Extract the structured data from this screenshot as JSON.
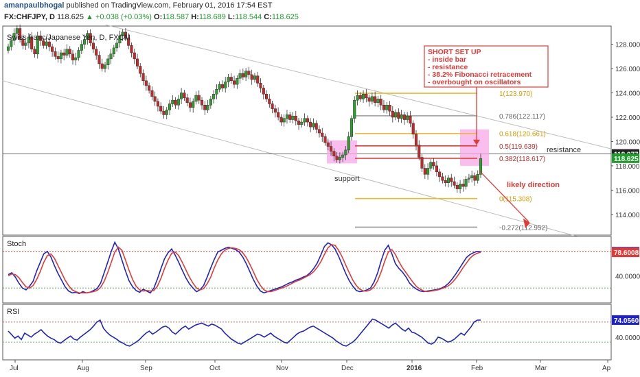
{
  "header": {
    "author": "amanpaulbhogal",
    "published_text": "published on TradingView.com, February 01, 2016 17:54 EST",
    "symbol_line": "FX:CHFJPY, D",
    "last_price": "118.625",
    "change": "+0.038 (+0.03%)",
    "ohlc": {
      "o_label": "O:",
      "o": "118.587",
      "h_label": "H:",
      "h": "118.689",
      "l_label": "L:",
      "l": "118.544",
      "c_label": "C:",
      "c": "118.625"
    }
  },
  "chart_data": [
    {
      "type": "candlestick",
      "title": "Swiss franc/Japanese Yen, D, FXCM",
      "ylim": [
        112.3,
        129.5
      ],
      "y_ticks": [
        114,
        116,
        118,
        120,
        122,
        124,
        126,
        128
      ],
      "x_ticks": [
        "Jul",
        "Aug",
        "Sep",
        "Oct",
        "Nov",
        "Dec",
        "2016",
        "Feb",
        "Mar",
        "Ap"
      ],
      "price_badges": [
        {
          "value": "118.977",
          "color": "#222222",
          "text_color": "#ffffff"
        },
        {
          "value": "118.625",
          "color": "#1f9d2c",
          "text_color": "#ffffff"
        }
      ],
      "closes": [
        127.8,
        128.3,
        128.9,
        129.3,
        128.4,
        127.9,
        128.1,
        128.6,
        127.6,
        127.2,
        128.7,
        128.3,
        127.9,
        128.2,
        127.8,
        127.4,
        127.0,
        126.8,
        127.3,
        127.1,
        127.6,
        127.2,
        126.7,
        126.9,
        127.5,
        128.0,
        128.4,
        128.9,
        128.1,
        127.6,
        127.1,
        126.4,
        126.0,
        126.3,
        126.8,
        127.2,
        127.7,
        128.1,
        128.7,
        129.0,
        128.5,
        127.9,
        127.3,
        126.8,
        126.2,
        125.6,
        125.0,
        124.6,
        124.2,
        123.7,
        123.3,
        122.9,
        122.5,
        122.2,
        122.6,
        123.1,
        123.4,
        123.0,
        123.5,
        124.0,
        123.6,
        123.2,
        122.8,
        123.3,
        123.8,
        123.4,
        123.0,
        122.6,
        123.0,
        123.5,
        123.9,
        124.3,
        124.7,
        124.4,
        124.9,
        125.3,
        125.0,
        124.7,
        125.2,
        125.6,
        125.3,
        125.8,
        125.5,
        125.1,
        125.4,
        124.8,
        124.4,
        123.9,
        123.5,
        123.1,
        122.7,
        122.4,
        122.0,
        121.6,
        121.9,
        122.2,
        121.8,
        122.1,
        121.7,
        121.4,
        121.6,
        121.9,
        121.6,
        121.2,
        121.5,
        121.0,
        120.7,
        120.4,
        119.9,
        119.6,
        119.2,
        118.8,
        118.5,
        118.7,
        118.9,
        119.3,
        120.4,
        121.9,
        123.4,
        123.8,
        123.5,
        123.9,
        123.6,
        123.3,
        123.7,
        123.2,
        123.5,
        123.0,
        122.6,
        123.0,
        122.5,
        122.0,
        122.4,
        121.9,
        122.2,
        121.8,
        122.1,
        121.5,
        120.6,
        119.7,
        118.7,
        117.8,
        117.3,
        117.8,
        118.3,
        118.0,
        117.5,
        117.1,
        116.8,
        116.6,
        117.0,
        116.7,
        116.4,
        116.1,
        116.5,
        116.3,
        116.9,
        117.0,
        117.2,
        116.8,
        117.3,
        118.6
      ],
      "fibonacci": [
        {
          "label": "1(123.970)",
          "value": 123.97,
          "color": "#f5b72a"
        },
        {
          "label": "0.786(122.117)",
          "value": 122.117,
          "color": "#9e9e9e"
        },
        {
          "label": "0.618(120.661)",
          "value": 120.661,
          "color": "#f5b72a"
        },
        {
          "label": "0.5(119.639)",
          "value": 119.639,
          "color": "#e53935"
        },
        {
          "label": "0.382(118.617)",
          "value": 118.617,
          "color": "#e53935"
        },
        {
          "label": "0(115.308)",
          "value": 115.308,
          "color": "#f5b72a"
        },
        {
          "label": "-0.272(112.952)",
          "value": 112.952,
          "color": "#9e9e9e"
        }
      ],
      "annotations": {
        "setup_box": [
          "SHORT SET UP",
          "- inside bar",
          "- resistance",
          "- 38.2% Fibonacci retracement",
          "- overbought on oscillators"
        ],
        "support": "support",
        "resistance": "resistance",
        "likely_direction": "likely direction"
      }
    },
    {
      "type": "line",
      "title": "Stoch",
      "ylim": [
        0,
        100
      ],
      "y_ticks": [
        40
      ],
      "levels": [
        80,
        20
      ],
      "badges": [
        {
          "value": "79.5316",
          "color": "#1e22c9"
        },
        {
          "value": "78.6008",
          "color": "#e53935"
        }
      ],
      "series": [
        {
          "name": "%K",
          "color": "#1e22c9",
          "values": [
            42,
            45,
            38,
            28,
            20,
            17,
            23,
            31,
            48,
            62,
            76,
            80,
            71,
            57,
            44,
            33,
            22,
            15,
            12,
            13,
            11,
            14,
            12,
            13,
            16,
            19,
            28,
            45,
            62,
            80,
            95,
            84,
            66,
            48,
            32,
            22,
            16,
            13,
            18,
            15,
            12,
            20,
            35,
            52,
            68,
            78,
            84,
            74,
            62,
            49,
            37,
            27,
            20,
            14,
            17,
            24,
            38,
            53,
            67,
            79,
            82,
            85,
            87,
            85,
            83,
            79,
            71,
            60,
            47,
            34,
            23,
            15,
            12,
            14,
            16,
            18,
            20,
            22,
            25,
            28,
            30,
            33,
            35,
            38,
            40,
            45,
            52,
            61,
            74,
            88,
            94,
            91,
            84,
            72,
            58,
            44,
            32,
            23,
            16,
            14,
            15,
            17,
            20,
            30,
            45,
            65,
            82,
            90,
            76,
            60,
            52,
            46,
            38,
            28,
            22,
            18,
            15,
            14,
            15,
            16,
            17,
            18,
            20,
            23,
            28,
            35,
            43,
            52,
            61,
            70,
            75,
            78,
            80,
            79.53
          ]
        },
        {
          "name": "%D",
          "color": "#e53935",
          "values": [
            40,
            43,
            42,
            37,
            29,
            22,
            20,
            24,
            34,
            47,
            62,
            73,
            76,
            69,
            57,
            45,
            33,
            24,
            17,
            14,
            12,
            12,
            12,
            13,
            14,
            16,
            21,
            31,
            45,
            62,
            79,
            87,
            82,
            66,
            49,
            34,
            23,
            17,
            15,
            16,
            15,
            16,
            23,
            36,
            52,
            66,
            77,
            79,
            73,
            62,
            50,
            38,
            28,
            20,
            17,
            19,
            27,
            38,
            53,
            66,
            76,
            82,
            85,
            86,
            85,
            83,
            78,
            70,
            59,
            47,
            34,
            24,
            17,
            14,
            14,
            16,
            18,
            20,
            22,
            25,
            28,
            31,
            33,
            36,
            39,
            42,
            47,
            54,
            63,
            75,
            86,
            91,
            90,
            82,
            71,
            58,
            45,
            33,
            24,
            18,
            15,
            15,
            17,
            22,
            32,
            47,
            64,
            79,
            83,
            75,
            63,
            53,
            45,
            37,
            29,
            22,
            18,
            15,
            14,
            15,
            16,
            17,
            19,
            21,
            24,
            29,
            36,
            44,
            53,
            61,
            69,
            74,
            77,
            78.6
          ]
        }
      ]
    },
    {
      "type": "line",
      "title": "RSI",
      "ylim": [
        0,
        100
      ],
      "y_ticks": [
        40
      ],
      "levels": [
        70,
        30
      ],
      "badges": [
        {
          "value": "74.0560",
          "color": "#1e22c9"
        }
      ],
      "series": [
        {
          "name": "RSI",
          "color": "#1e22c9",
          "values": [
            52,
            45,
            38,
            42,
            35,
            48,
            44,
            40,
            46,
            50,
            55,
            48,
            42,
            38,
            35,
            30,
            28,
            33,
            38,
            42,
            36,
            34,
            40,
            45,
            50,
            55,
            62,
            70,
            74,
            58,
            50,
            44,
            40,
            36,
            31,
            28,
            24,
            22,
            26,
            30,
            35,
            42,
            48,
            52,
            46,
            50,
            55,
            60,
            62,
            58,
            50,
            46,
            52,
            58,
            62,
            56,
            60,
            64,
            66,
            68,
            65,
            62,
            66,
            64,
            60,
            56,
            48,
            42,
            36,
            32,
            28,
            26,
            30,
            34,
            38,
            42,
            46,
            44,
            40,
            44,
            48,
            42,
            38,
            34,
            30,
            28,
            34,
            40,
            46,
            50,
            52,
            56,
            60,
            62,
            58,
            54,
            50,
            46,
            42,
            38,
            32,
            28,
            24,
            22,
            26,
            30,
            36,
            44,
            52,
            60,
            68,
            76,
            74,
            70,
            66,
            62,
            58,
            64,
            68,
            62,
            56,
            52,
            58,
            50,
            48,
            44,
            40,
            34,
            28,
            26,
            30,
            40,
            38,
            34,
            30,
            32,
            36,
            42,
            48,
            44,
            52,
            60,
            70,
            74,
            74.06
          ]
        }
      ]
    }
  ]
}
